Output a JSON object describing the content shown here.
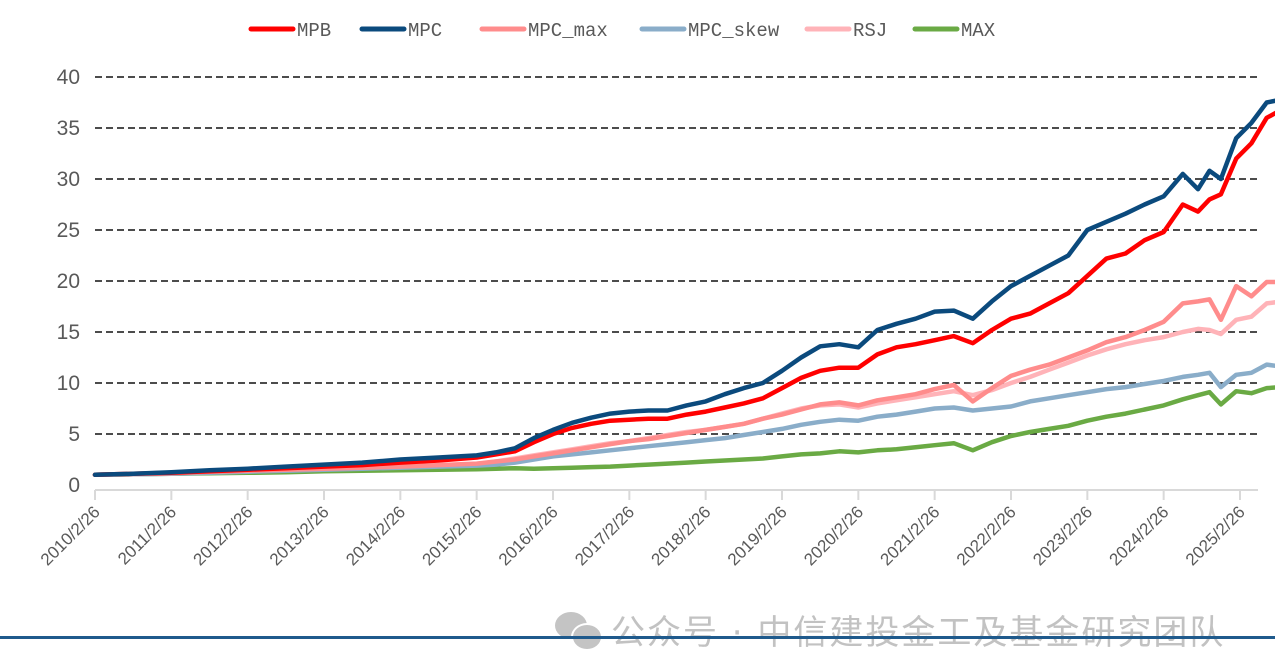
{
  "chart_data": {
    "type": "line",
    "title": "",
    "xlabel": "",
    "ylabel": "",
    "ylim": [
      0,
      40
    ],
    "yticks": [
      0,
      5,
      10,
      15,
      20,
      25,
      30,
      35,
      40
    ],
    "grid": "horizontal dashed",
    "legend_position": "top-center",
    "x_tick_labels": [
      "2010/2/26",
      "2011/2/26",
      "2012/2/26",
      "2013/2/26",
      "2014/2/26",
      "2015/2/26",
      "2016/2/26",
      "2017/2/26",
      "2018/2/26",
      "2019/2/26",
      "2020/2/26",
      "2021/2/26",
      "2022/2/26",
      "2023/2/26",
      "2024/2/26",
      "2025/2/26"
    ],
    "x_range": [
      2010.15,
      2025.7
    ],
    "x": [
      2010.15,
      2010.65,
      2011.15,
      2011.65,
      2012.15,
      2012.65,
      2013.15,
      2013.65,
      2014.15,
      2014.65,
      2015.15,
      2015.4,
      2015.65,
      2015.9,
      2016.15,
      2016.4,
      2016.65,
      2016.9,
      2017.15,
      2017.4,
      2017.65,
      2017.9,
      2018.15,
      2018.4,
      2018.65,
      2018.9,
      2019.15,
      2019.4,
      2019.65,
      2019.9,
      2020.15,
      2020.4,
      2020.65,
      2020.9,
      2021.15,
      2021.4,
      2021.65,
      2021.9,
      2022.15,
      2022.4,
      2022.65,
      2022.9,
      2023.15,
      2023.4,
      2023.65,
      2023.9,
      2024.15,
      2024.4,
      2024.6,
      2024.75,
      2024.9,
      2025.1,
      2025.3,
      2025.5,
      2025.7
    ],
    "series": [
      {
        "name": "MPB",
        "color": "#ff0000",
        "values": [
          1.0,
          1.1,
          1.2,
          1.35,
          1.5,
          1.65,
          1.8,
          1.95,
          2.2,
          2.4,
          2.7,
          3.0,
          3.3,
          4.2,
          5.0,
          5.6,
          6.0,
          6.3,
          6.4,
          6.5,
          6.5,
          6.9,
          7.2,
          7.6,
          8.0,
          8.5,
          9.5,
          10.5,
          11.2,
          11.5,
          11.5,
          12.8,
          13.5,
          13.8,
          14.2,
          14.6,
          13.9,
          15.2,
          16.3,
          16.8,
          17.8,
          18.8,
          20.5,
          22.2,
          22.7,
          24.0,
          24.8,
          27.5,
          26.8,
          28.0,
          28.5,
          32.0,
          33.5,
          36.0,
          36.8
        ]
      },
      {
        "name": "MPC",
        "color": "#0b4a7d",
        "values": [
          1.0,
          1.1,
          1.25,
          1.45,
          1.6,
          1.8,
          2.0,
          2.2,
          2.5,
          2.7,
          2.9,
          3.2,
          3.6,
          4.6,
          5.4,
          6.1,
          6.6,
          7.0,
          7.2,
          7.3,
          7.3,
          7.8,
          8.2,
          8.9,
          9.5,
          10.0,
          11.2,
          12.5,
          13.6,
          13.8,
          13.5,
          15.2,
          15.8,
          16.3,
          17.0,
          17.1,
          16.3,
          18.0,
          19.5,
          20.5,
          21.5,
          22.5,
          25.0,
          25.8,
          26.6,
          27.5,
          28.3,
          30.5,
          29.0,
          30.8,
          30.0,
          34.0,
          35.5,
          37.5,
          37.8
        ]
      },
      {
        "name": "MPC_max",
        "color": "#ff8c8c",
        "values": [
          1.0,
          1.08,
          1.15,
          1.3,
          1.4,
          1.5,
          1.6,
          1.7,
          1.8,
          1.95,
          2.1,
          2.3,
          2.5,
          2.8,
          3.1,
          3.4,
          3.7,
          4.0,
          4.3,
          4.5,
          4.8,
          5.1,
          5.4,
          5.7,
          6.0,
          6.5,
          6.9,
          7.4,
          7.9,
          8.1,
          7.8,
          8.3,
          8.6,
          8.9,
          9.4,
          9.8,
          8.2,
          9.5,
          10.7,
          11.3,
          11.8,
          12.5,
          13.2,
          14.0,
          14.5,
          15.2,
          16.0,
          17.8,
          18.0,
          18.2,
          16.2,
          19.5,
          18.5,
          19.9,
          19.9
        ]
      },
      {
        "name": "MPC_skew",
        "color": "#8aadc9",
        "values": [
          1.0,
          1.05,
          1.1,
          1.2,
          1.3,
          1.4,
          1.5,
          1.6,
          1.7,
          1.8,
          1.9,
          2.0,
          2.2,
          2.5,
          2.8,
          3.0,
          3.2,
          3.4,
          3.6,
          3.8,
          4.0,
          4.2,
          4.4,
          4.6,
          4.9,
          5.2,
          5.5,
          5.9,
          6.2,
          6.4,
          6.3,
          6.7,
          6.9,
          7.2,
          7.5,
          7.6,
          7.3,
          7.5,
          7.7,
          8.2,
          8.5,
          8.8,
          9.1,
          9.4,
          9.6,
          9.9,
          10.2,
          10.6,
          10.8,
          11.0,
          9.6,
          10.8,
          11.0,
          11.8,
          11.6
        ]
      },
      {
        "name": "RSJ",
        "color": "#ffb3b8",
        "values": [
          1.0,
          1.07,
          1.13,
          1.25,
          1.35,
          1.45,
          1.55,
          1.65,
          1.75,
          1.9,
          2.05,
          2.3,
          2.6,
          2.9,
          3.2,
          3.5,
          3.8,
          4.1,
          4.3,
          4.6,
          4.9,
          5.2,
          5.4,
          5.7,
          6.0,
          6.5,
          7.0,
          7.5,
          7.8,
          7.9,
          7.6,
          8.0,
          8.3,
          8.6,
          8.9,
          9.2,
          8.8,
          9.3,
          10.0,
          10.6,
          11.3,
          12.0,
          12.7,
          13.3,
          13.8,
          14.2,
          14.5,
          15.0,
          15.3,
          15.2,
          14.8,
          16.2,
          16.5,
          17.8,
          18.0
        ]
      },
      {
        "name": "MAX",
        "color": "#6aaa44",
        "values": [
          1.0,
          1.05,
          1.1,
          1.15,
          1.2,
          1.25,
          1.35,
          1.4,
          1.45,
          1.5,
          1.55,
          1.6,
          1.65,
          1.6,
          1.65,
          1.7,
          1.75,
          1.8,
          1.9,
          2.0,
          2.1,
          2.2,
          2.3,
          2.4,
          2.5,
          2.6,
          2.8,
          3.0,
          3.1,
          3.3,
          3.2,
          3.4,
          3.5,
          3.7,
          3.9,
          4.1,
          3.4,
          4.2,
          4.8,
          5.2,
          5.5,
          5.8,
          6.3,
          6.7,
          7.0,
          7.4,
          7.8,
          8.4,
          8.8,
          9.1,
          7.9,
          9.2,
          9.0,
          9.5,
          9.6
        ]
      }
    ]
  },
  "watermark": {
    "icon": "wechat-icon",
    "text": "公众号 · 中信建投金工及基金研究团队"
  }
}
